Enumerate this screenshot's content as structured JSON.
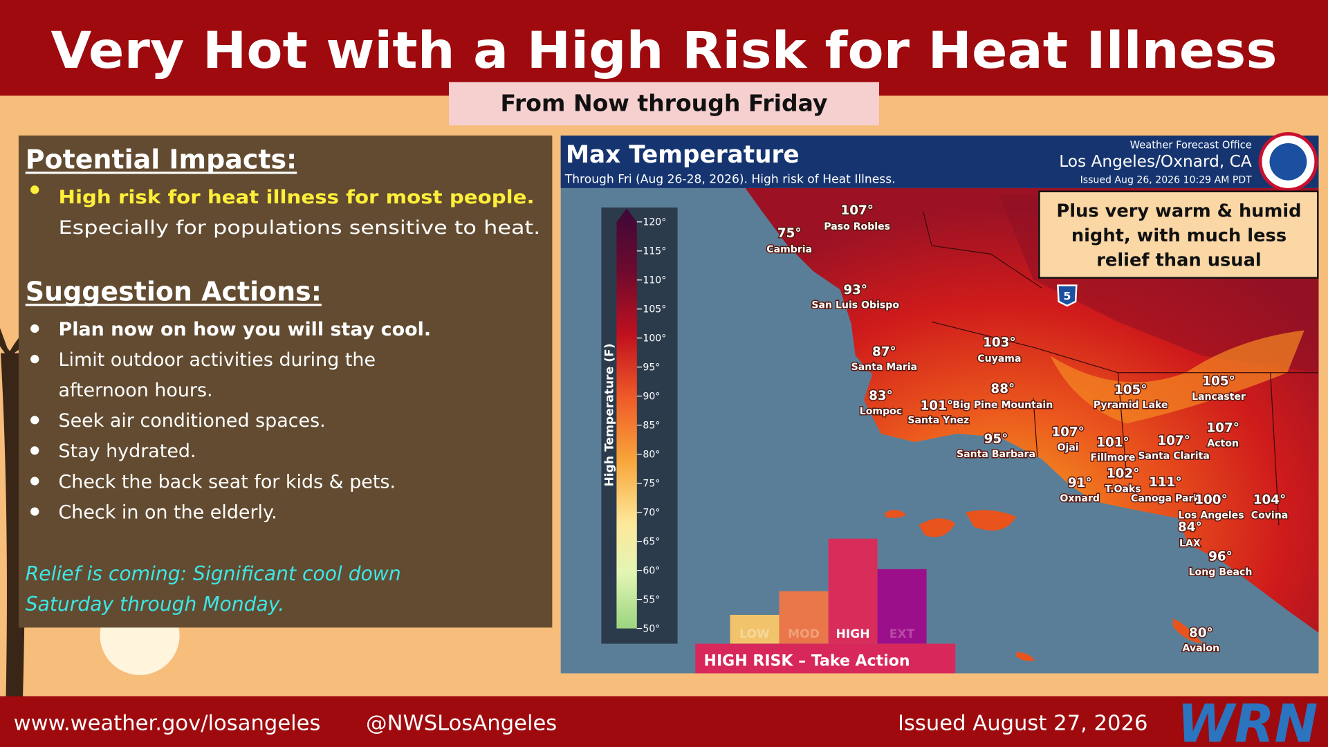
{
  "header": {
    "title": "Very Hot with a High Risk for Heat Illness",
    "subtitle": "From Now through Friday"
  },
  "impacts": {
    "heading": "Potential Impacts:",
    "lead": "High risk for heat illness for most people.",
    "detail": "Especially for populations sensitive to heat."
  },
  "actions": {
    "heading": "Suggestion Actions:",
    "items": [
      [
        "Plan now on how you will stay cool."
      ],
      [
        "Limit outdoor activities during the",
        "afternoon hours."
      ],
      [
        "Seek air conditioned spaces."
      ],
      [
        "Stay hydrated."
      ],
      [
        "Check the back seat for kids & pets."
      ],
      [
        "Check in on the elderly."
      ]
    ]
  },
  "relief": [
    "Relief is coming: Significant cool down",
    "Saturday through Monday."
  ],
  "map": {
    "title": "Max Temperature",
    "subtitle": "Through Fri (Aug 26-28, 2026). High risk of Heat Illness.",
    "office": [
      "Weather Forecast Office",
      "Los Angeles/Oxnard, CA",
      "Issued Aug 26, 2026 10:29 AM PDT"
    ],
    "callout": [
      "Plus very warm & humid",
      "night, with much less",
      "relief than usual"
    ],
    "highway": "5",
    "legend": {
      "label": "High Temperature (F)",
      "ticks": [
        "120°",
        "115°",
        "110°",
        "105°",
        "100°",
        "95°",
        "90°",
        "85°",
        "80°",
        "75°",
        "70°",
        "65°",
        "60°",
        "55°",
        "50°"
      ]
    },
    "cities": [
      {
        "temp": "107°",
        "name": "Paso Robles"
      },
      {
        "temp": "75°",
        "name": "Cambria"
      },
      {
        "temp": "93°",
        "name": "San Luis Obispo"
      },
      {
        "temp": "87°",
        "name": "Santa Maria"
      },
      {
        "temp": "83°",
        "name": "Lompoc"
      },
      {
        "temp": "101°",
        "name": "Santa Ynez"
      },
      {
        "temp": "88°",
        "name": "Big Pine Mountain"
      },
      {
        "temp": "103°",
        "name": "Cuyama"
      },
      {
        "temp": "95°",
        "name": "Santa Barbara"
      },
      {
        "temp": "105°",
        "name": "Pyramid Lake"
      },
      {
        "temp": "105°",
        "name": "Lancaster"
      },
      {
        "temp": "107°",
        "name": "Ojai"
      },
      {
        "temp": "101°",
        "name": "Fillmore"
      },
      {
        "temp": "107°",
        "name": "Santa Clarita"
      },
      {
        "temp": "107°",
        "name": "Acton"
      },
      {
        "temp": "102°",
        "name": "T.Oaks"
      },
      {
        "temp": "111°",
        "name": "Canoga Park"
      },
      {
        "temp": "91°",
        "name": "Oxnard"
      },
      {
        "temp": "100°",
        "name": "Los Angeles"
      },
      {
        "temp": "104°",
        "name": "Covina"
      },
      {
        "temp": "84°",
        "name": "LAX"
      },
      {
        "temp": "96°",
        "name": "Long Beach"
      },
      {
        "temp": "80°",
        "name": "Avalon"
      }
    ],
    "risk": {
      "levels": [
        "LOW",
        "MOD",
        "HIGH",
        "EXT"
      ],
      "banner": "HIGH RISK – Take Action"
    }
  },
  "footer": {
    "website": "www.weather.gov/losangeles",
    "handle": "@NWSLosAngeles",
    "issued": "Issued August 27, 2026",
    "logo": "WRN"
  }
}
